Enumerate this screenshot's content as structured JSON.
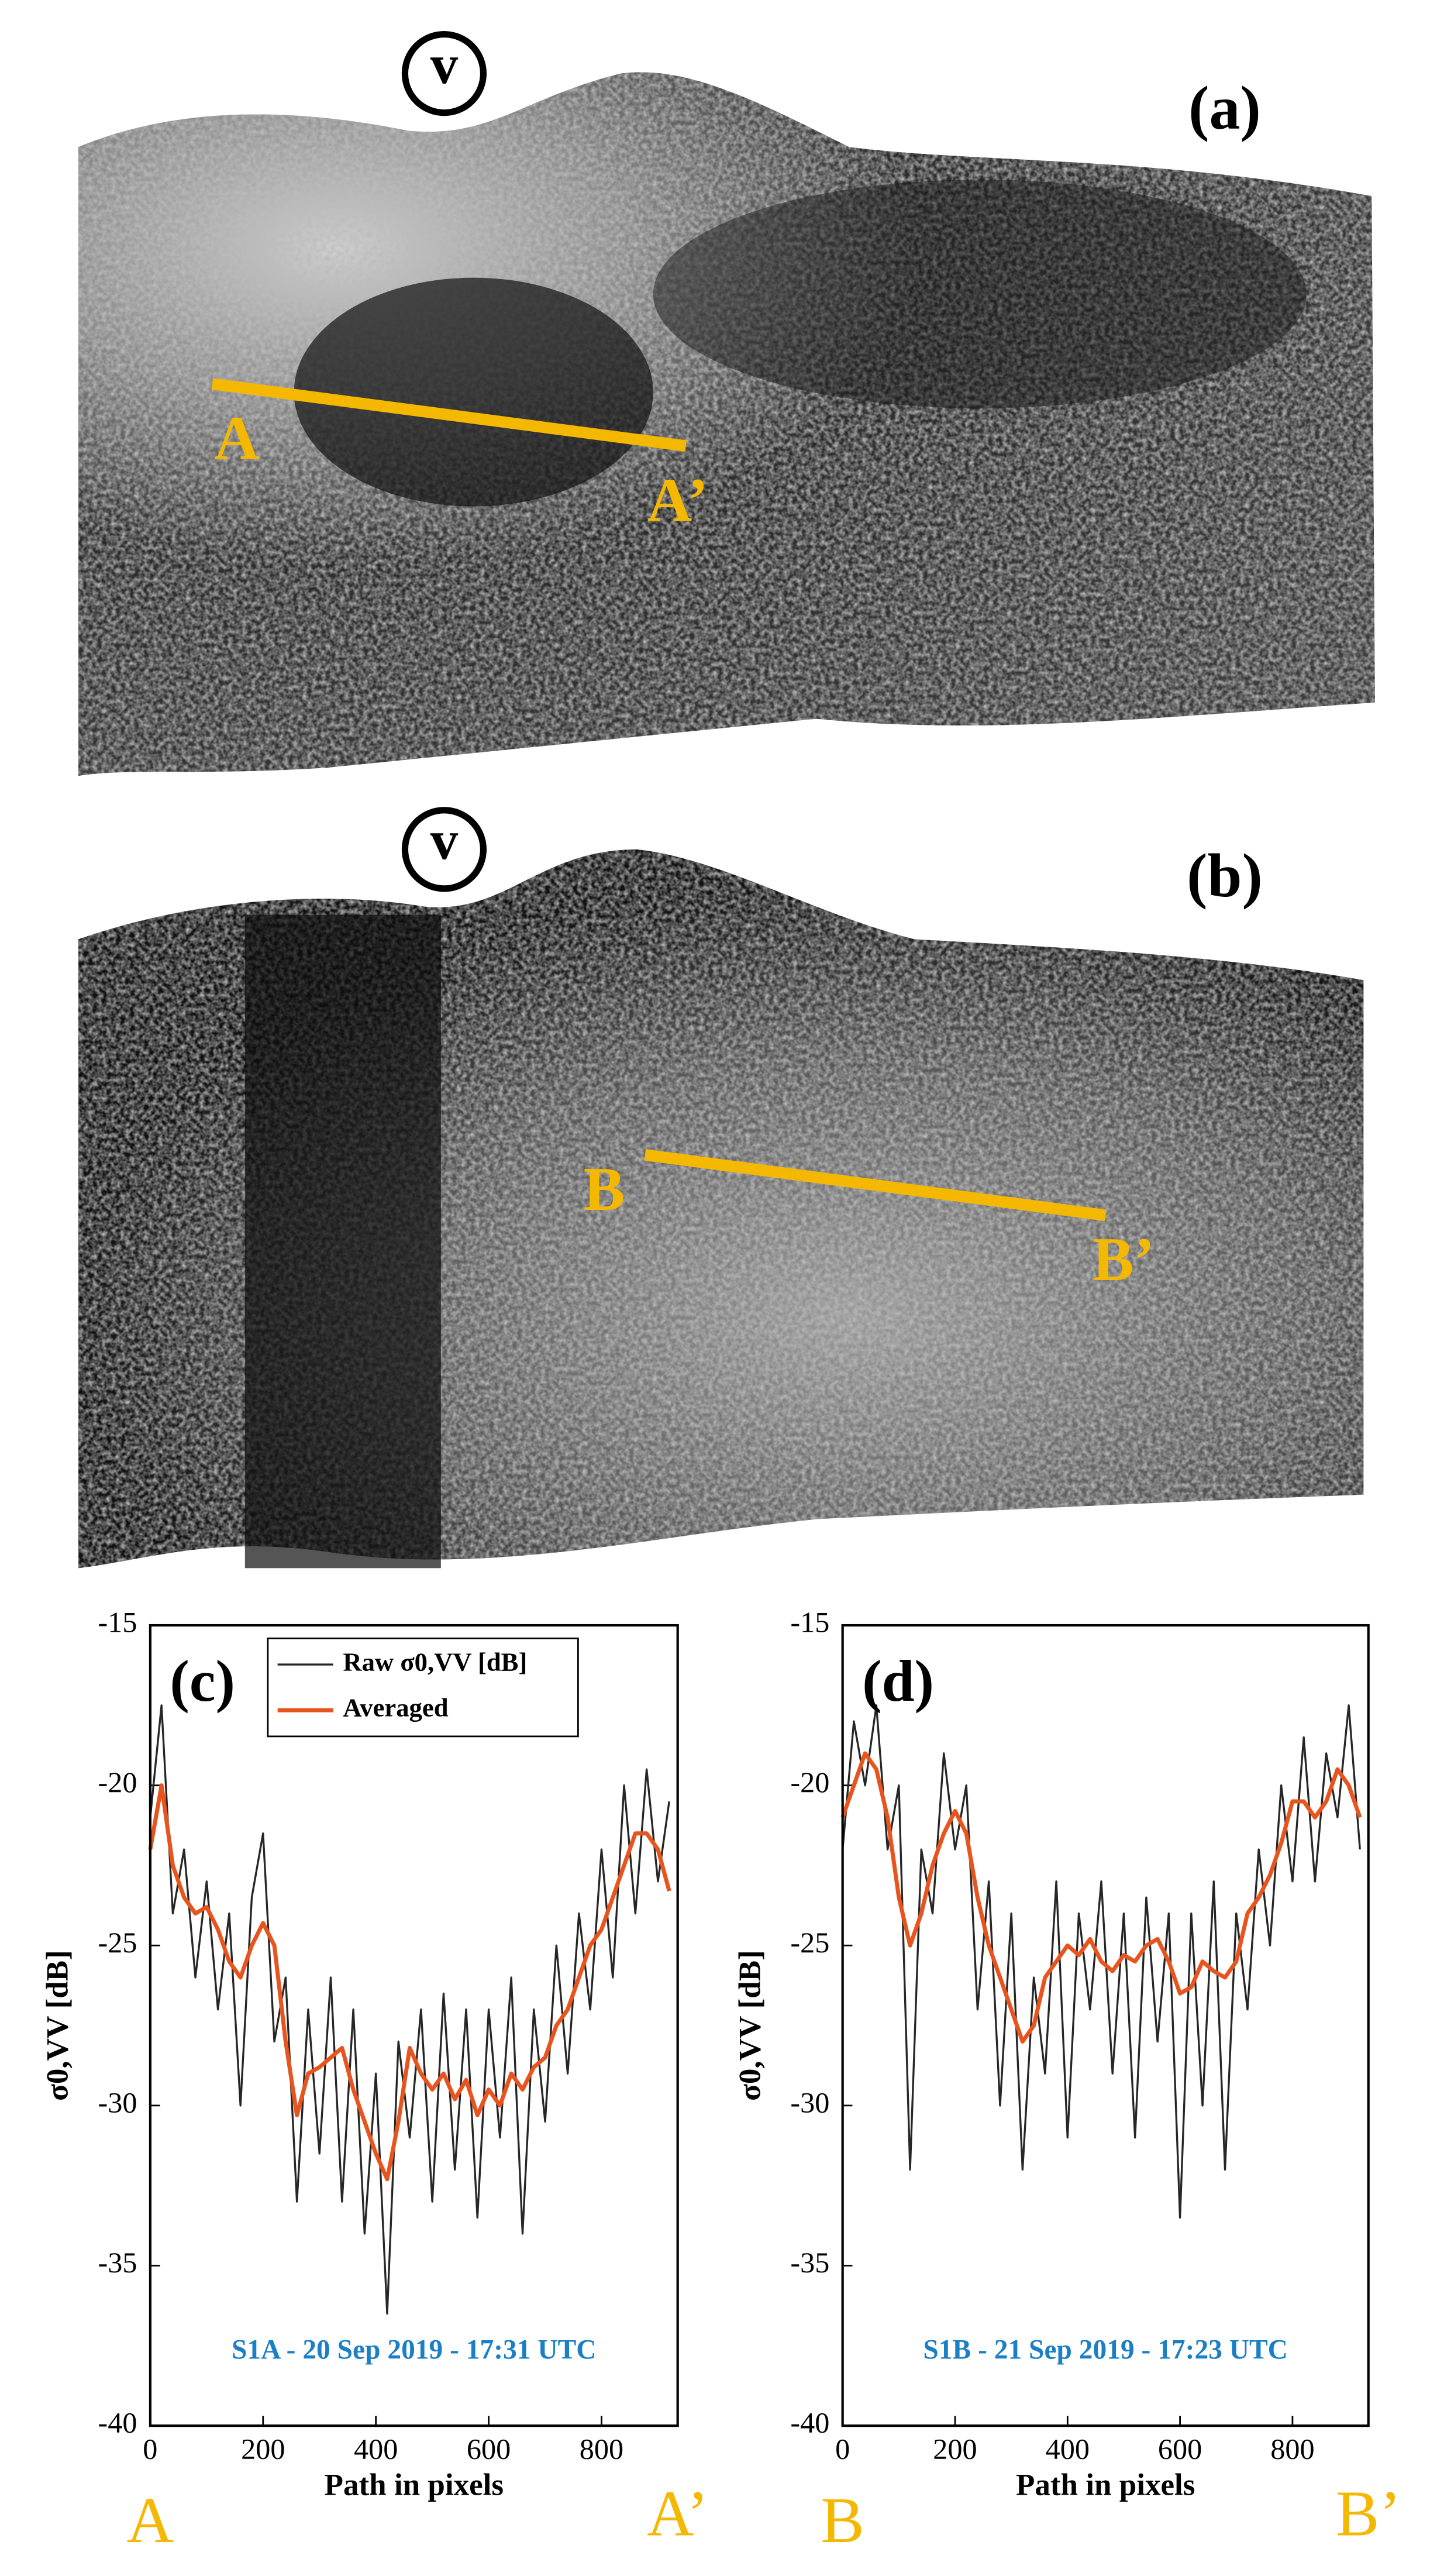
{
  "panels": [
    {
      "vent": "v",
      "label": "(a)",
      "start": "A",
      "end": "A’"
    },
    {
      "vent": "v",
      "label": "(b)",
      "start": "B",
      "end": "B’"
    }
  ],
  "chart_data": [
    {
      "type": "line",
      "panel_label": "(c)",
      "xlabel": "Path in pixels",
      "ylabel": "σ0,VV [dB]",
      "annotation": "S1A - 20 Sep 2019 - 17:31 UTC",
      "start_label": "A",
      "end_label": "A’",
      "xlim": [
        0,
        935
      ],
      "ylim": [
        -40,
        -15
      ],
      "xticks": [
        0,
        200,
        400,
        600,
        800
      ],
      "yticks": [
        -40,
        -35,
        -30,
        -25,
        -20,
        -15
      ],
      "legend": "upper center",
      "x": [
        0,
        20,
        40,
        60,
        80,
        100,
        120,
        140,
        160,
        180,
        200,
        220,
        240,
        260,
        280,
        300,
        320,
        340,
        360,
        380,
        400,
        420,
        440,
        460,
        480,
        500,
        520,
        540,
        560,
        580,
        600,
        620,
        640,
        660,
        680,
        700,
        720,
        740,
        760,
        780,
        800,
        820,
        840,
        860,
        880,
        900,
        920
      ],
      "series": [
        {
          "name": "Raw σ0,VV [dB]",
          "color": "#262626",
          "values": [
            -21,
            -17.5,
            -24,
            -22,
            -26,
            -23,
            -27,
            -24,
            -30,
            -23.5,
            -21.5,
            -28,
            -26,
            -33,
            -27,
            -31.5,
            -26,
            -33,
            -27,
            -34,
            -29,
            -36.5,
            -28,
            -31,
            -27,
            -33,
            -26.5,
            -32,
            -27,
            -33.5,
            -27,
            -31,
            -26,
            -34,
            -27,
            -30.5,
            -25,
            -29,
            -24,
            -27,
            -22,
            -26,
            -20,
            -24,
            -19.5,
            -23,
            -20.5
          ]
        },
        {
          "name": "Averaged",
          "color": "#e8541e",
          "values": [
            -22,
            -20,
            -22.5,
            -23.5,
            -24,
            -23.8,
            -24.5,
            -25.5,
            -26,
            -25,
            -24.3,
            -25,
            -28,
            -30.3,
            -29,
            -28.8,
            -28.5,
            -28.2,
            -29.5,
            -30.5,
            -31.5,
            -32.3,
            -30.5,
            -28.2,
            -29,
            -29.5,
            -29,
            -29.8,
            -29.2,
            -30.3,
            -29.5,
            -30,
            -29,
            -29.5,
            -28.8,
            -28.5,
            -27.5,
            -27,
            -26,
            -25,
            -24.5,
            -23.5,
            -22.5,
            -21.5,
            -21.5,
            -22,
            -23.3
          ]
        }
      ]
    },
    {
      "type": "line",
      "panel_label": "(d)",
      "xlabel": "Path in pixels",
      "ylabel": "σ0,VV [dB]",
      "annotation": "S1B - 21 Sep 2019 - 17:23 UTC",
      "start_label": "B",
      "end_label": "B’",
      "xlim": [
        0,
        935
      ],
      "ylim": [
        -40,
        -15
      ],
      "xticks": [
        0,
        200,
        400,
        600,
        800
      ],
      "yticks": [
        -40,
        -35,
        -30,
        -25,
        -20,
        -15
      ],
      "x": [
        0,
        20,
        40,
        60,
        80,
        100,
        120,
        140,
        160,
        180,
        200,
        220,
        240,
        260,
        280,
        300,
        320,
        340,
        360,
        380,
        400,
        420,
        440,
        460,
        480,
        500,
        520,
        540,
        560,
        580,
        600,
        620,
        640,
        660,
        680,
        700,
        720,
        740,
        760,
        780,
        800,
        820,
        840,
        860,
        880,
        900,
        920
      ],
      "series": [
        {
          "color": "#262626",
          "values": [
            -22,
            -18,
            -20,
            -17.5,
            -22,
            -20,
            -32,
            -22,
            -24,
            -19,
            -22,
            -20,
            -27,
            -23,
            -30,
            -24,
            -32,
            -26,
            -29,
            -23,
            -31,
            -24,
            -27,
            -23,
            -29,
            -24,
            -31,
            -23.5,
            -28,
            -24,
            -33.5,
            -24,
            -30,
            -23,
            -32,
            -24,
            -27,
            -22,
            -25,
            -20,
            -23,
            -18.5,
            -23,
            -19,
            -21,
            -17.5,
            -22
          ]
        },
        {
          "color": "#e8541e",
          "values": [
            -21,
            -20,
            -19,
            -19.5,
            -21,
            -23.5,
            -25,
            -24,
            -22.5,
            -21.5,
            -20.8,
            -21.5,
            -23.5,
            -25,
            -26,
            -27,
            -28,
            -27.5,
            -26,
            -25.5,
            -25,
            -25.3,
            -24.8,
            -25.5,
            -25.8,
            -25.3,
            -25.5,
            -25,
            -24.8,
            -25.5,
            -26.5,
            -26.3,
            -25.5,
            -25.8,
            -26,
            -25.5,
            -24,
            -23.5,
            -22.8,
            -21.8,
            -20.5,
            -20.5,
            -21,
            -20.5,
            -19.5,
            -20,
            -21
          ]
        }
      ]
    }
  ]
}
